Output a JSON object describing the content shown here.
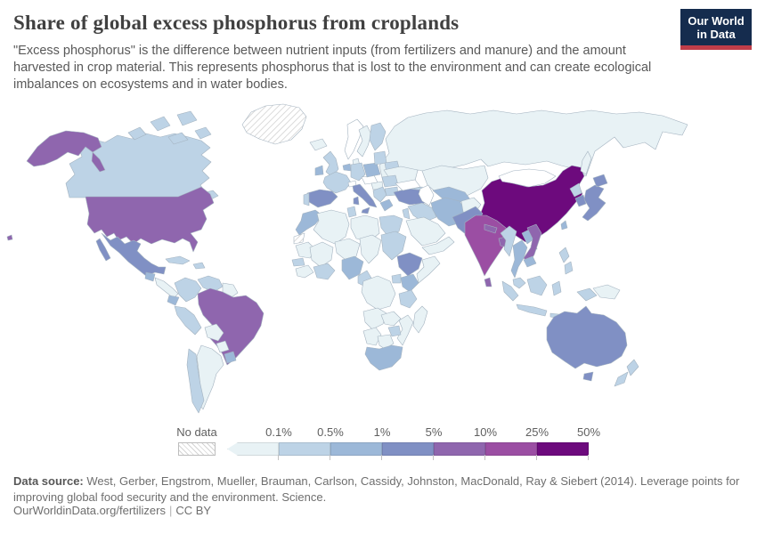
{
  "header": {
    "title": "Share of global excess phosphorus from croplands",
    "subtitle": "\"Excess phosphorus\" is the difference between nutrient inputs (from fertilizers and manure) and the amount harvested in crop material. This represents phosphorus that is lost to the environment and can create ecological imbalances on ecosystems and in water bodies.",
    "logo": {
      "line1": "Our World",
      "line2": "in Data",
      "bg_color": "#152c4e",
      "accent_color": "#c03d49"
    }
  },
  "legend": {
    "no_data_label": "No data",
    "tick_labels": [
      "0.1%",
      "0.5%",
      "1%",
      "5%",
      "10%",
      "25%",
      "50%"
    ],
    "colors": [
      "#e8f2f5",
      "#bdd3e6",
      "#9cb8d8",
      "#8090c4",
      "#8f66ae",
      "#9b4ea3",
      "#6d0a7d"
    ],
    "white_value_color": "#ffffff"
  },
  "map": {
    "ocean_color": "#ffffff",
    "border_color": "#a4b3c0",
    "no_data_pattern": "diagonal-hatch",
    "regions": [
      {
        "name": "russia",
        "bucket": 1
      },
      {
        "name": "canada",
        "bucket": 2
      },
      {
        "name": "arctic-islands",
        "bucket": 2
      },
      {
        "name": "greenland",
        "bucket": "nd"
      },
      {
        "name": "alaska",
        "bucket": 5
      },
      {
        "name": "usa",
        "bucket": 5
      },
      {
        "name": "hawaii",
        "bucket": 5
      },
      {
        "name": "mexico",
        "bucket": 4
      },
      {
        "name": "guatemala",
        "bucket": 3
      },
      {
        "name": "central-america",
        "bucket": 1
      },
      {
        "name": "cuba",
        "bucket": 2
      },
      {
        "name": "hispaniola",
        "bucket": 2
      },
      {
        "name": "colombia",
        "bucket": 2
      },
      {
        "name": "venezuela",
        "bucket": 2
      },
      {
        "name": "guyanas",
        "bucket": 1
      },
      {
        "name": "ecuador",
        "bucket": 3
      },
      {
        "name": "peru",
        "bucket": 2
      },
      {
        "name": "brazil",
        "bucket": 5
      },
      {
        "name": "bolivia",
        "bucket": 1
      },
      {
        "name": "paraguay",
        "bucket": 1
      },
      {
        "name": "argentina",
        "bucket": 1
      },
      {
        "name": "chile",
        "bucket": 2
      },
      {
        "name": "uruguay",
        "bucket": 3
      },
      {
        "name": "iceland",
        "bucket": 1
      },
      {
        "name": "norway",
        "bucket": 0
      },
      {
        "name": "sweden",
        "bucket": 1
      },
      {
        "name": "finland",
        "bucket": 2
      },
      {
        "name": "denmark",
        "bucket": 1
      },
      {
        "name": "uk",
        "bucket": 2
      },
      {
        "name": "ireland",
        "bucket": 3
      },
      {
        "name": "germany",
        "bucket": 2
      },
      {
        "name": "benelux",
        "bucket": 3
      },
      {
        "name": "france",
        "bucket": 2
      },
      {
        "name": "spain",
        "bucket": 4
      },
      {
        "name": "portugal",
        "bucket": 2
      },
      {
        "name": "switzerland",
        "bucket": 0
      },
      {
        "name": "czech-austria",
        "bucket": 0
      },
      {
        "name": "poland",
        "bucket": 3
      },
      {
        "name": "baltics",
        "bucket": 2
      },
      {
        "name": "belarus",
        "bucket": 2
      },
      {
        "name": "ukraine",
        "bucket": 1
      },
      {
        "name": "romania",
        "bucket": 2
      },
      {
        "name": "hungary",
        "bucket": 1
      },
      {
        "name": "balkans",
        "bucket": 2
      },
      {
        "name": "bulgaria",
        "bucket": 2
      },
      {
        "name": "greece",
        "bucket": 3
      },
      {
        "name": "italy",
        "bucket": 4
      },
      {
        "name": "kazakhstan",
        "bucket": 1
      },
      {
        "name": "central-asia",
        "bucket": 3
      },
      {
        "name": "caucasus",
        "bucket": 2
      },
      {
        "name": "turkey",
        "bucket": 4
      },
      {
        "name": "syria-iraq",
        "bucket": 2
      },
      {
        "name": "israel-jordan",
        "bucket": 2
      },
      {
        "name": "iran",
        "bucket": 3
      },
      {
        "name": "afghanistan",
        "bucket": 1
      },
      {
        "name": "saudi-arabia",
        "bucket": 1
      },
      {
        "name": "yemen-oman",
        "bucket": 1
      },
      {
        "name": "morocco",
        "bucket": 3
      },
      {
        "name": "western-sahara",
        "bucket": "nd"
      },
      {
        "name": "algeria",
        "bucket": 1
      },
      {
        "name": "tunisia",
        "bucket": 2
      },
      {
        "name": "libya",
        "bucket": 1
      },
      {
        "name": "egypt",
        "bucket": 2
      },
      {
        "name": "mauritania",
        "bucket": 1
      },
      {
        "name": "mali",
        "bucket": 1
      },
      {
        "name": "niger",
        "bucket": 1
      },
      {
        "name": "chad",
        "bucket": 1
      },
      {
        "name": "sudan",
        "bucket": 2
      },
      {
        "name": "senegal",
        "bucket": 2
      },
      {
        "name": "guinea-region",
        "bucket": 1
      },
      {
        "name": "ivory-ghana",
        "bucket": 2
      },
      {
        "name": "nigeria",
        "bucket": 3
      },
      {
        "name": "cameroon",
        "bucket": 2
      },
      {
        "name": "ethiopia",
        "bucket": 4
      },
      {
        "name": "somalia",
        "bucket": 1
      },
      {
        "name": "uganda",
        "bucket": 2
      },
      {
        "name": "kenya",
        "bucket": 3
      },
      {
        "name": "drc",
        "bucket": 1
      },
      {
        "name": "tanzania",
        "bucket": 2
      },
      {
        "name": "angola",
        "bucket": 1
      },
      {
        "name": "zambia",
        "bucket": 1
      },
      {
        "name": "mozambique",
        "bucket": 1
      },
      {
        "name": "zimbabwe",
        "bucket": 2
      },
      {
        "name": "namibia",
        "bucket": 1
      },
      {
        "name": "botswana",
        "bucket": 1
      },
      {
        "name": "south-africa",
        "bucket": 3
      },
      {
        "name": "madagascar",
        "bucket": 1
      },
      {
        "name": "china",
        "bucket": 7
      },
      {
        "name": "hainan",
        "bucket": 7
      },
      {
        "name": "mongolia",
        "bucket": 0
      },
      {
        "name": "sakhalin",
        "bucket": 1
      },
      {
        "name": "pakistan",
        "bucket": 4
      },
      {
        "name": "india",
        "bucket": 6
      },
      {
        "name": "nepal",
        "bucket": 5
      },
      {
        "name": "bangladesh",
        "bucket": 5
      },
      {
        "name": "sri-lanka",
        "bucket": 5
      },
      {
        "name": "myanmar",
        "bucket": 2
      },
      {
        "name": "laos",
        "bucket": 3
      },
      {
        "name": "vietnam",
        "bucket": 5
      },
      {
        "name": "thailand",
        "bucket": 3
      },
      {
        "name": "cambodia",
        "bucket": 3
      },
      {
        "name": "malaysia",
        "bucket": 2
      },
      {
        "name": "indonesia",
        "bucket": 2
      },
      {
        "name": "philippines",
        "bucket": 2
      },
      {
        "name": "taiwan",
        "bucket": 3
      },
      {
        "name": "north-korea",
        "bucket": 2
      },
      {
        "name": "south-korea",
        "bucket": 4
      },
      {
        "name": "japan",
        "bucket": 4
      },
      {
        "name": "png",
        "bucket": 1
      },
      {
        "name": "australia",
        "bucket": 4
      },
      {
        "name": "tasmania",
        "bucket": 4
      },
      {
        "name": "new-zealand",
        "bucket": 2
      }
    ]
  },
  "footer": {
    "source_label": "Data source:",
    "source_text": " West, Gerber, Engstrom, Mueller, Brauman, Carlson, Cassidy, Johnston, MacDonald, Ray & Siebert (2014). Leverage points for improving global food security and the environment. Science.",
    "link": "OurWorldinData.org/fertilizers",
    "separator": "|",
    "license": "CC BY"
  },
  "chart_data": {
    "type": "heatmap",
    "map_type": "choropleth-world-map",
    "title": "Share of global excess phosphorus from croplands",
    "legend_thresholds_percent": [
      0.1,
      0.5,
      1,
      5,
      10,
      25,
      50
    ],
    "legend_colors": [
      "#e8f2f5",
      "#bdd3e6",
      "#9cb8d8",
      "#8090c4",
      "#8f66ae",
      "#9b4ea3",
      "#6d0a7d"
    ],
    "notable_values": [
      {
        "country": "China",
        "bucket": "25%–50%"
      },
      {
        "country": "India",
        "bucket": "10%–25%"
      },
      {
        "country": "United States",
        "bucket": "5%–10%"
      },
      {
        "country": "Brazil",
        "bucket": "5%–10%"
      },
      {
        "country": "Vietnam",
        "bucket": "5%–10%"
      },
      {
        "country": "Australia",
        "bucket": "1%–5%"
      },
      {
        "country": "Mexico",
        "bucket": "1%–5%"
      },
      {
        "country": "Spain",
        "bucket": "1%–5%"
      },
      {
        "country": "Italy",
        "bucket": "1%–5%"
      },
      {
        "country": "Turkey",
        "bucket": "1%–5%"
      },
      {
        "country": "Pakistan",
        "bucket": "1%–5%"
      },
      {
        "country": "Ethiopia",
        "bucket": "1%–5%"
      },
      {
        "country": "Japan",
        "bucket": "1%–5%"
      },
      {
        "country": "Canada",
        "bucket": "0.1%–0.5%"
      },
      {
        "country": "Russia",
        "bucket": "<0.1%"
      },
      {
        "country": "Greenland",
        "bucket": "No data"
      }
    ]
  }
}
